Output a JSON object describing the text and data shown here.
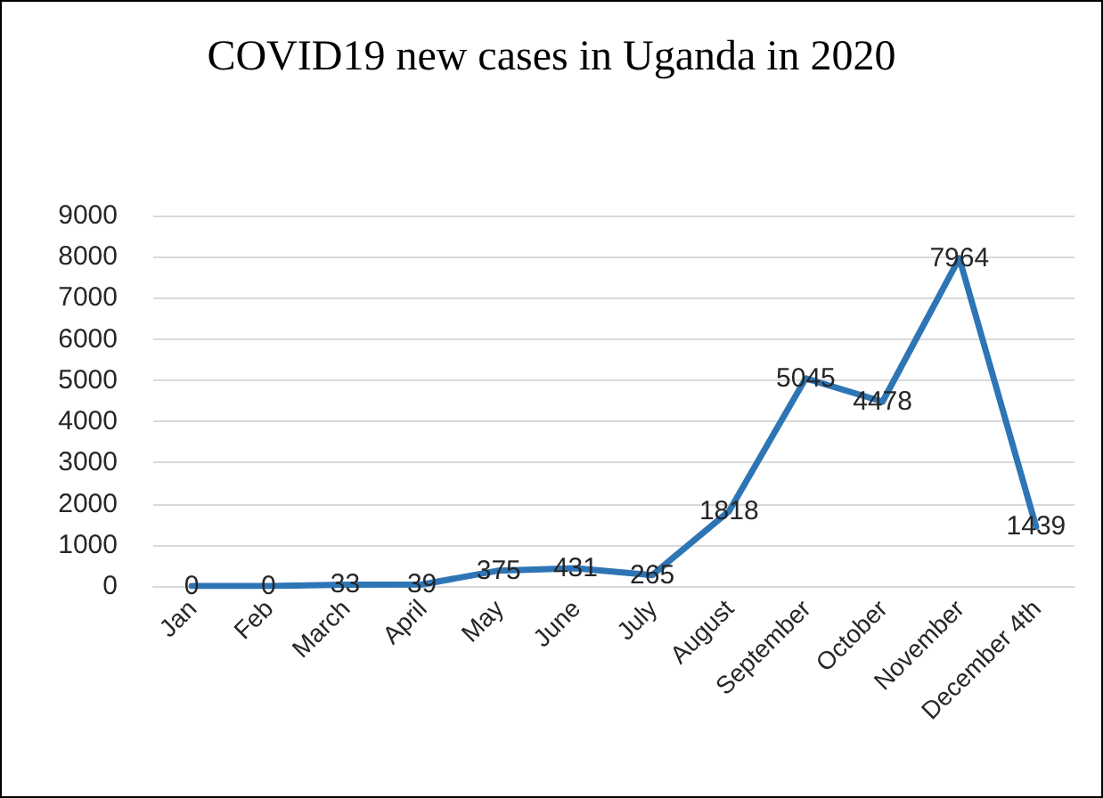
{
  "chart_data": {
    "type": "line",
    "title": "COVID19 new cases in Uganda in 2020",
    "categories": [
      "Jan",
      "Feb",
      "March",
      "April",
      "May",
      "June",
      "July",
      "August",
      "September",
      "October",
      "November",
      "December 4th"
    ],
    "series": [
      {
        "color": "#2e75b6",
        "values": [
          0,
          0,
          33,
          39,
          375,
          431,
          265,
          1818,
          5045,
          4478,
          7964,
          1439
        ]
      }
    ],
    "ylim": [
      0,
      9000
    ],
    "yticks": [
      0,
      1000,
      2000,
      3000,
      4000,
      5000,
      6000,
      7000,
      8000,
      9000
    ],
    "grid": "y",
    "data_labels": true,
    "marker": "none",
    "line_style": "solid"
  }
}
